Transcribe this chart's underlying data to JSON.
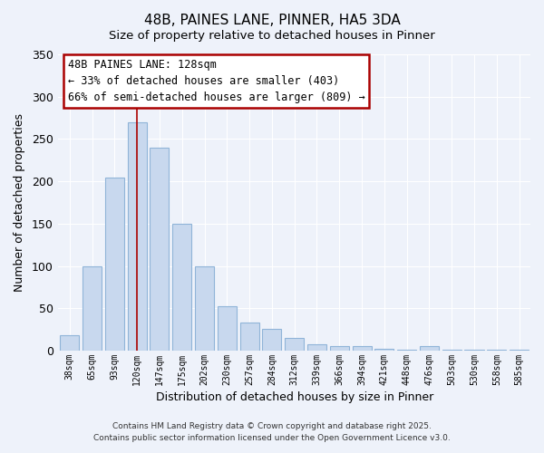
{
  "title": "48B, PAINES LANE, PINNER, HA5 3DA",
  "subtitle": "Size of property relative to detached houses in Pinner",
  "xlabel": "Distribution of detached houses by size in Pinner",
  "ylabel": "Number of detached properties",
  "bar_color": "#c8d8ee",
  "bar_edge_color": "#90b4d8",
  "background_color": "#eef2fa",
  "grid_color": "#ffffff",
  "categories": [
    "38sqm",
    "65sqm",
    "93sqm",
    "120sqm",
    "147sqm",
    "175sqm",
    "202sqm",
    "230sqm",
    "257sqm",
    "284sqm",
    "312sqm",
    "339sqm",
    "366sqm",
    "394sqm",
    "421sqm",
    "448sqm",
    "476sqm",
    "503sqm",
    "530sqm",
    "558sqm",
    "585sqm"
  ],
  "values": [
    18,
    100,
    204,
    270,
    240,
    150,
    100,
    52,
    33,
    26,
    15,
    8,
    5,
    5,
    2,
    1,
    5,
    1,
    1,
    1,
    1
  ],
  "ylim": [
    0,
    350
  ],
  "yticks": [
    0,
    50,
    100,
    150,
    200,
    250,
    300,
    350
  ],
  "marker_index": 3,
  "marker_label": "48B PAINES LANE: 128sqm",
  "annotation_line1": "← 33% of detached houses are smaller (403)",
  "annotation_line2": "66% of semi-detached houses are larger (809) →",
  "marker_color": "#aa0000",
  "footnote1": "Contains HM Land Registry data © Crown copyright and database right 2025.",
  "footnote2": "Contains public sector information licensed under the Open Government Licence v3.0."
}
